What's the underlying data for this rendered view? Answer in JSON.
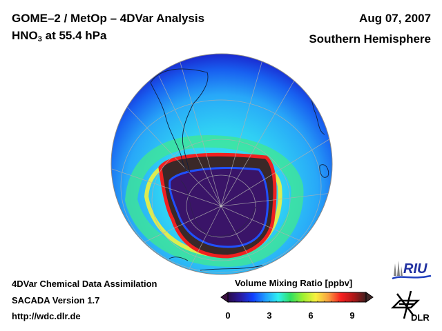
{
  "header": {
    "title_line1": "GOME–2 / MetOp – 4DVar Analysis",
    "species_main": "HNO",
    "species_sub": "3",
    "species_rest": " at 55.4 hPa",
    "date": "Aug 07, 2007",
    "region": "Southern Hemisphere"
  },
  "footer": {
    "line1": "4DVar Chemical Data Assimilation",
    "line2": "SACADA Version 1.7",
    "line3": "http://wdc.dlr.de"
  },
  "colorbar": {
    "title": "Volume Mixing Ratio [ppbv]",
    "min": 0,
    "max": 10,
    "ticks": [
      "0",
      "3",
      "6",
      "9"
    ],
    "colors": [
      "#2a0a4a",
      "#2a1aa0",
      "#1040ff",
      "#20a0ff",
      "#30f0f0",
      "#30e060",
      "#a0f030",
      "#f8f040",
      "#f8a040",
      "#f82020",
      "#b01818",
      "#402020"
    ],
    "under_color": "#3a1040",
    "over_color": "#402828"
  },
  "map": {
    "projection": "orthographic",
    "center": "South Pole",
    "field": "HNO3 volume mixing ratio",
    "ocean_background": "#30c0f0",
    "vortex_core_color": "#3a1468",
    "collar_color": "#3a2828"
  },
  "logos": {
    "riu": "RIU",
    "dlr": "DLR"
  }
}
